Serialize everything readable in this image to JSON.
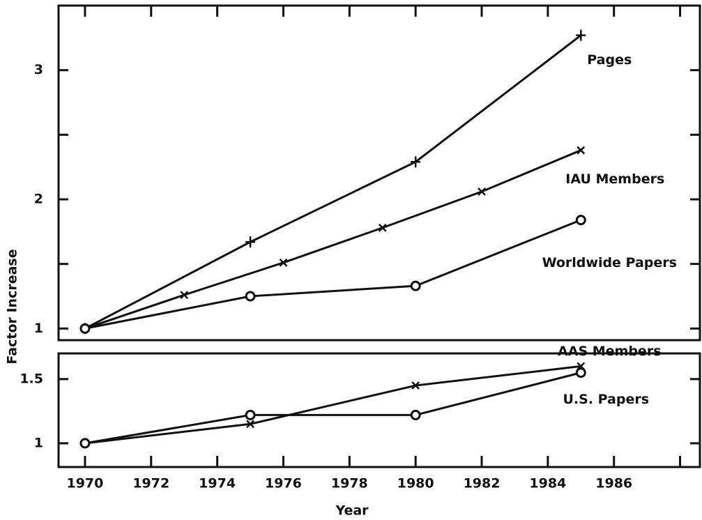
{
  "chart_data": [
    {
      "type": "line",
      "ylabel": "Factor Increase",
      "xlim": [
        1969.2,
        1988.6
      ],
      "xticks": [
        1970,
        1972,
        1974,
        1976,
        1978,
        1980,
        1982,
        1984,
        1986
      ],
      "xminor_ticks": [
        1988
      ],
      "ylim": [
        0.91,
        3.5
      ],
      "yticks": [
        1,
        2,
        3
      ],
      "yminor_ticks": [
        1.5,
        2.5
      ],
      "series": [
        {
          "name": "Pages",
          "color": "#111111",
          "marker": "plus",
          "x": [
            1970,
            1975,
            1980,
            1985
          ],
          "values": [
            1,
            1.67,
            2.29,
            3.27
          ]
        },
        {
          "name": "IAU Members",
          "color": "#111111",
          "marker": "x",
          "x": [
            1970,
            1973,
            1976,
            1979,
            1982,
            1985
          ],
          "values": [
            1,
            1.26,
            1.51,
            1.78,
            2.06,
            2.38
          ]
        },
        {
          "name": "Worldwide Papers",
          "color": "#111111",
          "marker": "circle",
          "x": [
            1970,
            1975,
            1980,
            1985
          ],
          "values": [
            1,
            1.25,
            1.33,
            1.84
          ]
        }
      ]
    },
    {
      "type": "line",
      "xlabel": "Year",
      "xlim": [
        1969.2,
        1988.6
      ],
      "xticks": [
        1970,
        1972,
        1974,
        1976,
        1978,
        1980,
        1982,
        1984,
        1986
      ],
      "xminor_ticks": [
        1988
      ],
      "ylim": [
        0.815,
        1.7
      ],
      "yticks": [
        1,
        1.5
      ],
      "series": [
        {
          "name": "AAS Members",
          "color": "#111111",
          "marker": "x",
          "x": [
            1970,
            1975,
            1980,
            1985
          ],
          "values": [
            1,
            1.15,
            1.45,
            1.6
          ]
        },
        {
          "name": "U.S. Papers",
          "color": "#111111",
          "marker": "circle",
          "x": [
            1970,
            1975,
            1980,
            1985
          ],
          "values": [
            1,
            1.22,
            1.22,
            1.55
          ]
        }
      ]
    }
  ]
}
